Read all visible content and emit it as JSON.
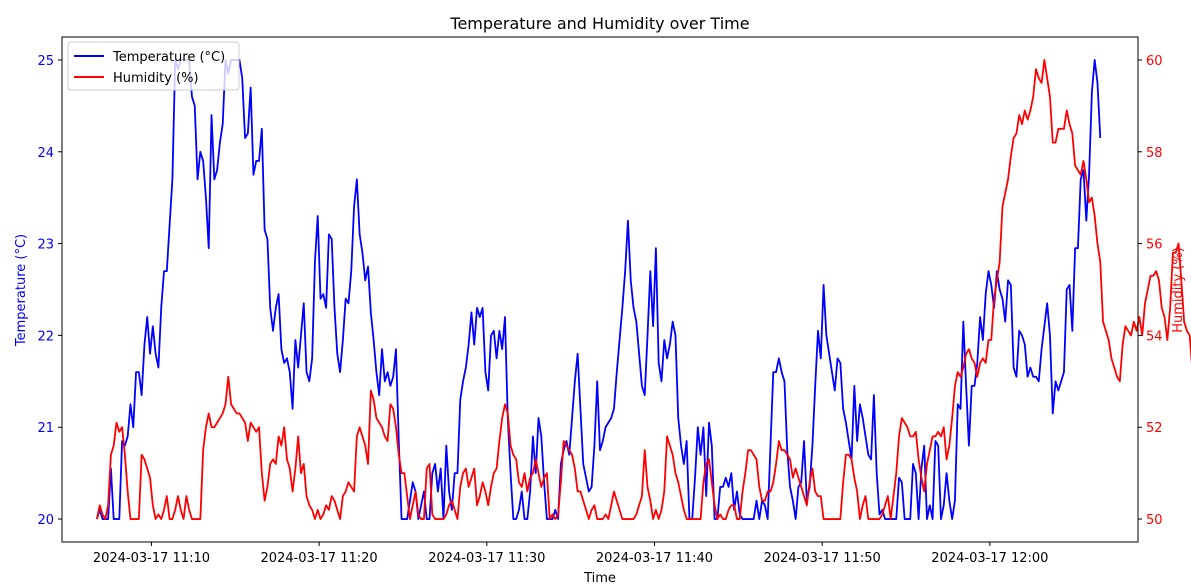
{
  "chart_data": {
    "type": "line",
    "title": "Temperature and Humidity over Time",
    "xlabel": "Time",
    "ylabel_left": "Temperature (°C)",
    "ylabel_right": "Humidity (%)",
    "x_start": "2024-03-17 11:06:45",
    "x_end": "2024-03-17 12:06:45",
    "x_step_seconds": 10,
    "xlim": [
      "2024-03-17 11:04:40",
      "2024-03-17 12:08:50"
    ],
    "x_ticks": [
      "2024-03-17 11:10",
      "2024-03-17 11:20",
      "2024-03-17 11:30",
      "2024-03-17 11:40",
      "2024-03-17 11:50",
      "2024-03-17 12:00"
    ],
    "ylim_left": [
      19.75,
      25.25
    ],
    "yticks_left": [
      "20",
      "21",
      "22",
      "23",
      "24",
      "25"
    ],
    "ylim_right": [
      49.5,
      60.5
    ],
    "yticks_right": [
      "50",
      "52",
      "54",
      "56",
      "58",
      "60"
    ],
    "legend_position": "upper-left",
    "grid": false,
    "series": [
      {
        "name": "Temperature (°C)",
        "axis": "left",
        "color": "#0000ff",
        "values": [
          20.0,
          20.1,
          20.0,
          20.0,
          20.0,
          20.55,
          20.0,
          20.0,
          20.0,
          20.85,
          20.8,
          20.9,
          21.25,
          21.0,
          21.6,
          21.6,
          21.35,
          21.9,
          22.2,
          21.8,
          22.1,
          21.8,
          21.65,
          22.3,
          22.7,
          22.7,
          23.2,
          23.7,
          25.0,
          24.9,
          25.0,
          25.0,
          25.0,
          25.0,
          24.6,
          24.5,
          23.7,
          24.0,
          23.9,
          23.5,
          22.95,
          24.4,
          23.7,
          23.8,
          24.1,
          24.3,
          25.0,
          24.85,
          25.0,
          25.0,
          25.0,
          25.0,
          24.8,
          24.15,
          24.2,
          24.7,
          23.75,
          23.9,
          23.9,
          24.25,
          23.15,
          23.05,
          22.3,
          22.05,
          22.3,
          22.45,
          21.85,
          21.7,
          21.75,
          21.6,
          21.2,
          21.95,
          21.65,
          22.0,
          22.35,
          21.6,
          21.5,
          21.75,
          22.8,
          23.3,
          22.4,
          22.45,
          22.3,
          23.1,
          23.05,
          22.3,
          21.8,
          21.6,
          21.95,
          22.4,
          22.35,
          22.7,
          23.4,
          23.7,
          23.1,
          22.9,
          22.6,
          22.75,
          22.25,
          21.95,
          21.6,
          21.35,
          21.85,
          21.5,
          21.6,
          21.45,
          21.55,
          21.85,
          20.85,
          20.0,
          20.0,
          20.0,
          20.2,
          20.4,
          20.3,
          20.0,
          20.15,
          20.3,
          20.0,
          20.0,
          20.5,
          20.6,
          20.3,
          20.55,
          20.0,
          20.8,
          20.3,
          20.1,
          20.5,
          20.5,
          21.3,
          21.5,
          21.65,
          21.9,
          22.25,
          21.9,
          22.3,
          22.2,
          22.3,
          21.6,
          21.4,
          22.0,
          22.05,
          21.75,
          22.05,
          21.85,
          22.2,
          21.1,
          20.5,
          20.0,
          20.0,
          20.1,
          20.3,
          20.0,
          20.0,
          20.3,
          20.9,
          20.5,
          21.1,
          20.9,
          20.4,
          20.0,
          20.0,
          20.0,
          20.1,
          20.0,
          20.6,
          20.75,
          20.85,
          20.7,
          21.1,
          21.5,
          21.8,
          21.2,
          20.6,
          20.45,
          20.3,
          20.35,
          20.8,
          21.5,
          20.75,
          20.85,
          21.0,
          21.05,
          21.1,
          21.2,
          21.6,
          21.95,
          22.3,
          22.7,
          23.25,
          22.6,
          22.3,
          22.15,
          21.8,
          21.45,
          21.35,
          22.0,
          22.7,
          22.1,
          22.95,
          21.7,
          21.5,
          21.95,
          21.75,
          21.9,
          22.15,
          22.0,
          21.1,
          20.8,
          20.6,
          20.85,
          20.0,
          20.0,
          20.45,
          21.0,
          20.7,
          21.0,
          20.25,
          21.05,
          20.8,
          20.0,
          20.0,
          20.35,
          20.35,
          20.45,
          20.35,
          20.5,
          20.1,
          20.3,
          20.05,
          20.0,
          20.0,
          20.0,
          20.0,
          20.0,
          20.2,
          20.0,
          20.2,
          20.15,
          20.0,
          20.8,
          21.6,
          21.6,
          21.75,
          21.6,
          21.5,
          20.75,
          20.35,
          20.2,
          20.0,
          20.35,
          20.4,
          20.85,
          20.2,
          20.35,
          20.8,
          21.45,
          22.05,
          21.75,
          22.55,
          22.0,
          21.8,
          21.6,
          21.4,
          21.75,
          21.7,
          21.2,
          21.05,
          20.85,
          20.65,
          21.45,
          20.85,
          21.25,
          21.1,
          20.9,
          20.7,
          20.65,
          21.35,
          20.5,
          20.05,
          20.1,
          20.0,
          20.0,
          20.0,
          20.0,
          20.0,
          20.45,
          20.4,
          20.0,
          20.0,
          20.0,
          20.6,
          20.5,
          20.0,
          20.55,
          20.8,
          20.0,
          20.15,
          20.0,
          20.85,
          20.8,
          20.0,
          20.15,
          20.5,
          20.2,
          20.0,
          20.2,
          21.25,
          21.2,
          22.15,
          21.45,
          20.8,
          21.45,
          21.45,
          21.7,
          22.2,
          21.95,
          22.45,
          22.7,
          22.55,
          22.3,
          22.7,
          22.5,
          22.4,
          22.15,
          22.6,
          22.55,
          21.65,
          21.55,
          22.05,
          22.0,
          21.9,
          21.55,
          21.65,
          21.55,
          21.55,
          21.5,
          21.85,
          22.1,
          22.35,
          22.0,
          21.15,
          21.5,
          21.4,
          21.5,
          21.6,
          22.5,
          22.55,
          22.05,
          22.95,
          22.95,
          23.7,
          23.8,
          23.25,
          23.75,
          24.65,
          25.0,
          24.75,
          24.15
        ]
      },
      {
        "name": "Humidity (%)",
        "axis": "right",
        "color": "#ff0000",
        "values": [
          50.0,
          50.3,
          50.1,
          50.0,
          50.3,
          51.4,
          51.6,
          52.1,
          51.9,
          52.0,
          51.4,
          50.6,
          50.0,
          50.0,
          50.0,
          50.0,
          51.4,
          51.3,
          51.1,
          50.9,
          50.3,
          50.0,
          50.1,
          50.0,
          50.2,
          50.5,
          50.0,
          50.0,
          50.2,
          50.5,
          50.2,
          50.0,
          50.5,
          50.2,
          50.0,
          50.0,
          50.0,
          50.0,
          51.5,
          52.0,
          52.3,
          52.0,
          52.0,
          52.1,
          52.2,
          52.3,
          52.5,
          53.1,
          52.5,
          52.4,
          52.3,
          52.3,
          52.2,
          52.1,
          51.7,
          52.1,
          52.0,
          51.9,
          52.0,
          51.0,
          50.4,
          50.7,
          51.2,
          51.3,
          51.2,
          51.8,
          51.6,
          52.0,
          51.3,
          51.1,
          50.6,
          51.1,
          51.8,
          51.0,
          51.2,
          50.5,
          50.3,
          50.2,
          50.0,
          50.2,
          50.0,
          50.1,
          50.3,
          50.2,
          50.5,
          50.4,
          50.2,
          50.0,
          50.5,
          50.6,
          50.8,
          50.7,
          50.6,
          51.8,
          52.0,
          51.8,
          51.6,
          51.2,
          52.8,
          52.6,
          52.2,
          52.1,
          52.0,
          51.8,
          51.7,
          52.5,
          52.4,
          52.0,
          51.4,
          51.0,
          51.0,
          50.5,
          50.0,
          50.3,
          50.6,
          50.1,
          50.0,
          50.0,
          51.1,
          51.2,
          50.1,
          50.0,
          50.0,
          50.0,
          50.0,
          50.1,
          50.3,
          50.4,
          50.2,
          50.0,
          50.7,
          51.0,
          51.1,
          50.7,
          50.9,
          51.1,
          50.3,
          50.5,
          50.8,
          50.6,
          50.3,
          50.7,
          51.0,
          51.1,
          51.7,
          52.2,
          52.5,
          52.3,
          51.6,
          51.4,
          51.3,
          50.8,
          50.7,
          51.0,
          50.6,
          50.9,
          51.0,
          51.3,
          51.0,
          50.7,
          50.9,
          51.0,
          50.0,
          50.1,
          50.0,
          50.1,
          50.8,
          51.7,
          51.6,
          51.5,
          51.4,
          51.1,
          50.6,
          50.6,
          50.4,
          50.2,
          50.0,
          50.2,
          50.3,
          50.0,
          50.0,
          50.0,
          50.1,
          50.0,
          50.3,
          50.6,
          50.4,
          50.2,
          50.0,
          50.0,
          50.0,
          50.0,
          50.0,
          50.1,
          50.3,
          50.5,
          51.5,
          50.7,
          50.4,
          50.0,
          50.2,
          50.0,
          50.2,
          50.6,
          51.8,
          51.6,
          51.4,
          51.0,
          50.8,
          50.5,
          50.2,
          50.0,
          50.0,
          50.0,
          50.0,
          50.0,
          50.0,
          50.8,
          51.2,
          51.3,
          50.8,
          50.3,
          50.0,
          50.1,
          50.0,
          50.0,
          50.2,
          50.3,
          50.3,
          50.0,
          50.0,
          50.6,
          51.0,
          51.5,
          51.5,
          51.4,
          51.3,
          50.7,
          50.4,
          50.4,
          50.6,
          50.6,
          50.8,
          51.2,
          51.7,
          51.5,
          51.5,
          51.4,
          51.3,
          50.9,
          51.1,
          50.9,
          50.7,
          50.5,
          50.3,
          50.8,
          51.1,
          50.6,
          50.5,
          50.5,
          50.0,
          50.0,
          50.0,
          50.0,
          50.0,
          50.0,
          50.0,
          50.8,
          51.4,
          51.4,
          51.3,
          50.9,
          50.6,
          50.0,
          50.3,
          50.5,
          50.0,
          50.0,
          50.0,
          50.0,
          50.0,
          50.1,
          50.3,
          50.5,
          50.0,
          50.5,
          51.0,
          51.8,
          52.2,
          52.1,
          52.0,
          51.8,
          51.8,
          51.9,
          51.3,
          50.9,
          50.6,
          51.2,
          51.5,
          51.8,
          51.8,
          51.9,
          51.8,
          52.0,
          51.3,
          51.6,
          52.2,
          52.9,
          53.2,
          53.1,
          53.3,
          53.6,
          53.7,
          53.5,
          53.4,
          53.1,
          53.4,
          53.5,
          53.4,
          53.9,
          53.9,
          54.8,
          55.2,
          55.6,
          56.8,
          57.1,
          57.4,
          57.9,
          58.3,
          58.4,
          58.8,
          58.6,
          58.9,
          58.7,
          58.9,
          59.2,
          59.8,
          59.6,
          59.5,
          60.0,
          59.6,
          59.2,
          58.2,
          58.2,
          58.5,
          58.5,
          58.5,
          58.9,
          58.6,
          58.4,
          57.7,
          57.6,
          57.5,
          57.8,
          57.4,
          56.9,
          57.0,
          56.6,
          56.0,
          55.6,
          54.3,
          54.1,
          53.9,
          53.5,
          53.3,
          53.1,
          53.0,
          53.8,
          54.2,
          54.1,
          54.0,
          54.3,
          54.1,
          54.4,
          54.0,
          54.7,
          55.0,
          55.3,
          55.3,
          55.4,
          55.2,
          54.6,
          54.4,
          53.9,
          54.6,
          55.8,
          55.8,
          56.0,
          55.2,
          54.3,
          54.1,
          54.0,
          53.2,
          53.0,
          53.1,
          53.5,
          53.4,
          53.6,
          53.2,
          53.1,
          52.7,
          53.3,
          53.6,
          52.9,
          52.0,
          51.7,
          51.8,
          51.9,
          51.5,
          51.0,
          50.5,
          50.0,
          50.0,
          50.1,
          50.0,
          50.0,
          50.3,
          50.1,
          50.0,
          50.2,
          50.4,
          50.4,
          50.5,
          50.6
        ]
      }
    ]
  }
}
